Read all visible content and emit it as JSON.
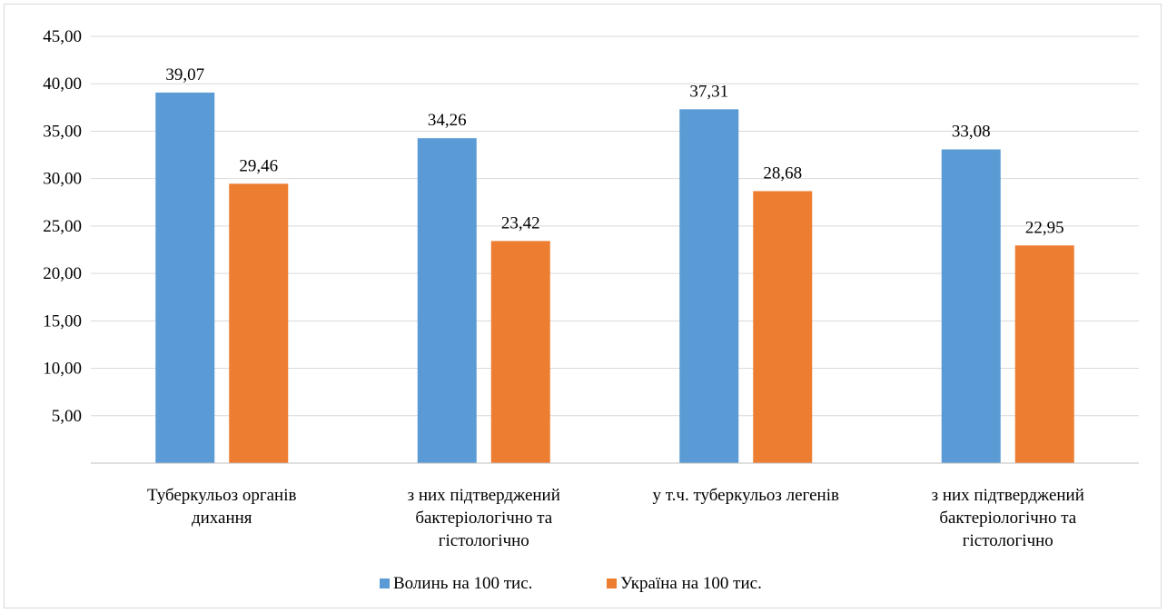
{
  "chart_data": {
    "type": "bar",
    "title": "",
    "xlabel": "",
    "ylabel": "",
    "ylim": [
      0,
      45
    ],
    "yticks": [
      "45,00",
      "40,00",
      "35,00",
      "30,00",
      "25,00",
      "20,00",
      "15,00",
      "10,00",
      "5,00"
    ],
    "ytick_values": [
      45,
      40,
      35,
      30,
      25,
      20,
      15,
      10,
      5
    ],
    "grid": true,
    "legend_position": "bottom",
    "categories": [
      [
        "Туберкульоз органів",
        "дихання"
      ],
      [
        "з них підтверджений",
        "бактеріологічно та",
        "гістологічно"
      ],
      [
        "у т.ч.  туберкульоз легенів"
      ],
      [
        "з них підтверджений",
        "бактеріологічно та",
        "гістологічно"
      ]
    ],
    "series": [
      {
        "name": "Волинь на 100 тис.",
        "color": "#5b9bd5",
        "values": [
          39.07,
          34.26,
          37.31,
          33.08
        ],
        "labels": [
          "39,07",
          "34,26",
          "37,31",
          "33,08"
        ]
      },
      {
        "name": "Україна на 100 тис.",
        "color": "#ed7d31",
        "values": [
          29.46,
          23.42,
          28.68,
          22.95
        ],
        "labels": [
          "29,46",
          "23,42",
          "28,68",
          "22,95"
        ]
      }
    ]
  }
}
